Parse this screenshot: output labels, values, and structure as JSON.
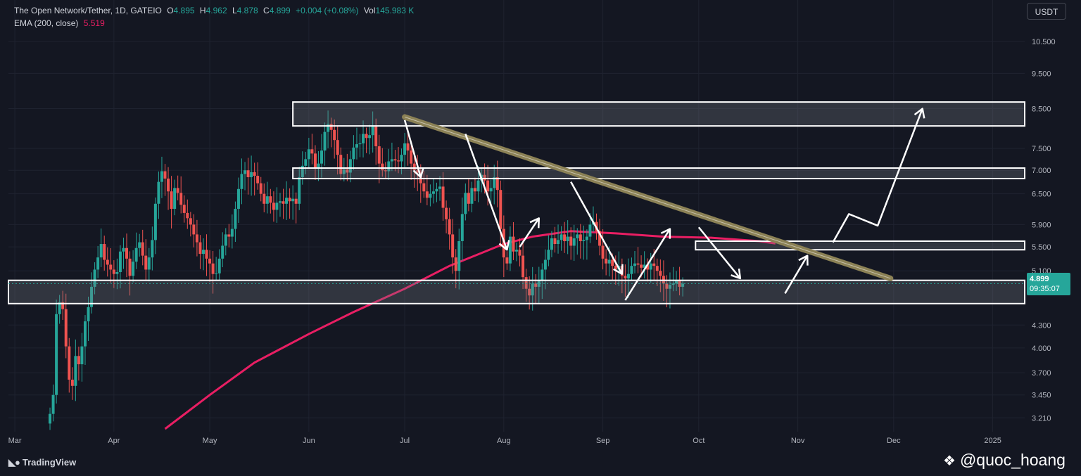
{
  "header": {
    "symbol": "The Open Network/Tether, 1D, GATEIO",
    "o_label": "O",
    "o_value": "4.895",
    "h_label": "H",
    "h_value": "4.962",
    "l_label": "L",
    "l_value": "4.878",
    "c_label": "C",
    "c_value": "4.899",
    "change": "+0.004 (+0.08%)",
    "vol_label": "Vol",
    "vol_value": "145.983 K",
    "ema_label": "EMA (200, close)",
    "ema_value": "5.519"
  },
  "currency_button": "USDT",
  "current_price": {
    "price": "4.899",
    "countdown": "09:35:07"
  },
  "branding": {
    "tradingview": "TradingView",
    "watermark": "@quoc_hoang"
  },
  "colors": {
    "background": "#141722",
    "up": "#26a69a",
    "down": "#ef5350",
    "ema": "#e91e63",
    "zone_stroke": "#ffffff",
    "trendline": "#8b8155"
  },
  "icons": {
    "tv-logo": "tradingview-logo-icon",
    "watermark": "binance-square-icon"
  },
  "chart_data": {
    "type": "candlestick",
    "title": "The Open Network/Tether, 1D, GATEIO",
    "y_scale": "log",
    "ylim": [
      3.1,
      11.2
    ],
    "y_ticks": [
      "10.500",
      "9.500",
      "8.500",
      "7.500",
      "7.000",
      "6.500",
      "5.900",
      "5.500",
      "5.100",
      "4.300",
      "4.000",
      "3.700",
      "3.450",
      "3.210"
    ],
    "y_tick_values": [
      10.5,
      9.5,
      8.5,
      7.5,
      7.0,
      6.5,
      5.9,
      5.5,
      5.1,
      4.3,
      4.0,
      3.7,
      3.45,
      3.21
    ],
    "x_ticks": [
      "Mar",
      "Apr",
      "May",
      "Jun",
      "Jul",
      "Aug",
      "Sep",
      "Oct",
      "Nov",
      "Dec",
      "2025"
    ],
    "x_tick_dates": [
      "2024-03-01",
      "2024-04-01",
      "2024-05-01",
      "2024-06-01",
      "2024-07-01",
      "2024-08-01",
      "2024-09-01",
      "2024-10-01",
      "2024-11-01",
      "2024-12-01",
      "2025-01-01"
    ],
    "x_range": [
      "2024-02-28",
      "2025-01-11"
    ],
    "closes": {
      "start_date": "2024-03-12",
      "values": [
        3.25,
        3.45,
        4.45,
        4.62,
        4.52,
        4.02,
        3.62,
        3.55,
        3.9,
        3.8,
        4.02,
        4.35,
        4.55,
        4.85,
        5.12,
        5.32,
        5.55,
        5.28,
        5.2,
        5.12,
        5.05,
        5.08,
        5.42,
        5.48,
        5.3,
        5.02,
        5.25,
        5.48,
        5.58,
        5.35,
        5.12,
        5.32,
        5.62,
        6.3,
        6.75,
        6.98,
        6.82,
        6.55,
        6.2,
        6.62,
        6.52,
        6.28,
        6.12,
        6.02,
        5.9,
        5.72,
        5.58,
        5.38,
        5.45,
        5.3,
        5.22,
        5.05,
        5.06,
        5.3,
        5.52,
        5.72,
        5.68,
        5.82,
        6.2,
        6.6,
        6.92,
        7.0,
        6.85,
        6.96,
        6.88,
        6.72,
        6.5,
        6.3,
        6.45,
        6.32,
        6.18,
        6.32,
        6.35,
        6.3,
        6.42,
        6.35,
        6.4,
        6.3,
        6.85,
        7.1,
        7.25,
        7.48,
        7.38,
        7.05,
        7.15,
        7.45,
        7.9,
        8.1,
        7.95,
        7.7,
        7.35,
        6.92,
        7.02,
        6.95,
        7.25,
        7.52,
        7.6,
        7.62,
        7.85,
        7.75,
        7.82,
        8.05,
        7.55,
        7.15,
        7.0,
        6.98,
        7.2,
        7.25,
        7.22,
        7.2,
        7.35,
        7.62,
        7.45,
        7.15,
        7.0,
        6.95,
        6.72,
        6.55,
        6.42,
        6.5,
        6.55,
        6.6,
        6.65,
        6.22,
        6.0,
        5.72,
        5.32,
        5.1,
        5.6,
        6.1,
        6.52,
        6.3,
        6.62,
        6.55,
        6.78,
        6.9,
        6.78,
        6.55,
        6.62,
        6.85,
        6.58,
        5.82,
        5.32,
        5.22,
        5.68,
        5.42,
        5.45,
        5.35,
        5.0,
        4.82,
        4.72,
        4.9,
        4.85,
        4.95,
        5.12,
        5.28,
        5.45,
        5.65,
        5.55,
        5.62,
        5.72,
        5.6,
        5.68,
        5.52,
        5.65,
        5.72,
        5.6,
        5.62,
        5.68,
        5.9,
        5.95,
        5.78,
        5.52,
        5.3,
        5.22,
        5.28,
        5.18,
        5.12,
        5.18,
        5.02,
        4.98,
        5.05,
        5.18,
        5.22,
        5.2,
        5.15,
        5.2,
        5.12,
        5.22,
        5.18,
        5.1,
        5.02,
        4.9,
        4.82,
        4.88,
        4.9,
        4.95,
        4.85,
        4.899
      ],
      "note": "approximate daily closes read from the chart; one value per day from start_date"
    },
    "ema_200": {
      "points": [
        [
          "2024-04-17",
          3.1
        ],
        [
          "2024-05-01",
          3.45
        ],
        [
          "2024-05-15",
          3.82
        ],
        [
          "2024-06-01",
          4.18
        ],
        [
          "2024-06-15",
          4.48
        ],
        [
          "2024-07-01",
          4.82
        ],
        [
          "2024-07-15",
          5.18
        ],
        [
          "2024-08-01",
          5.55
        ],
        [
          "2024-08-10",
          5.68
        ],
        [
          "2024-08-22",
          5.78
        ],
        [
          "2024-09-05",
          5.74
        ],
        [
          "2024-09-20",
          5.68
        ],
        [
          "2024-10-05",
          5.66
        ],
        [
          "2024-10-20",
          5.6
        ],
        [
          "2024-10-25",
          5.56
        ]
      ]
    },
    "zones": [
      {
        "name": "resistance-zone-top",
        "from": "2024-05-27",
        "to": "2025-01-11",
        "low": 8.05,
        "high": 8.68
      },
      {
        "name": "resistance-zone-mid",
        "from": "2024-05-27",
        "to": "2025-01-11",
        "low": 6.82,
        "high": 7.05
      },
      {
        "name": "resistance-zone-low",
        "from": "2024-09-30",
        "to": "2025-01-11",
        "low": 5.45,
        "high": 5.6
      },
      {
        "name": "support-zone",
        "from": "2024-02-28",
        "to": "2025-01-11",
        "low": 4.6,
        "high": 4.95
      }
    ],
    "trendline": {
      "from": [
        "2024-07-01",
        8.28
      ],
      "to": [
        "2024-11-30",
        4.98
      ]
    },
    "arrows": [
      [
        [
          "2024-07-01",
          8.2
        ],
        [
          "2024-07-06",
          6.85
        ]
      ],
      [
        [
          "2024-07-20",
          7.85
        ],
        [
          "2024-08-02",
          5.45
        ]
      ],
      [
        [
          "2024-08-06",
          5.5
        ],
        [
          "2024-08-12",
          6.02
        ]
      ],
      [
        [
          "2024-08-22",
          6.75
        ],
        [
          "2024-09-07",
          5.05
        ]
      ],
      [
        [
          "2024-09-08",
          4.65
        ],
        [
          "2024-09-22",
          5.82
        ]
      ],
      [
        [
          "2024-10-01",
          5.85
        ],
        [
          "2024-10-14",
          4.98
        ]
      ],
      [
        [
          "2024-10-28",
          4.75
        ],
        [
          "2024-11-04",
          5.35
        ]
      ],
      [
        [
          "2024-11-12",
          5.58
        ],
        [
          "2024-11-17",
          6.1
        ],
        [
          "2024-11-26",
          5.88
        ],
        [
          "2024-12-10",
          8.5
        ]
      ]
    ]
  }
}
